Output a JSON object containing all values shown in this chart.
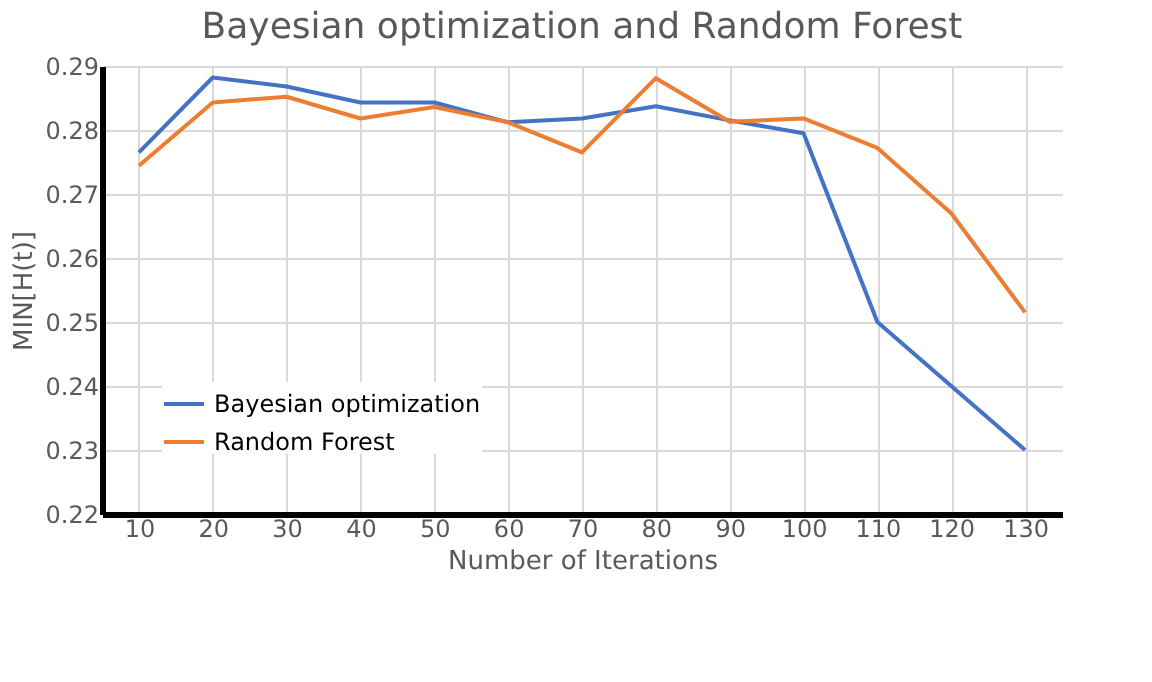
{
  "chart_data": {
    "type": "line",
    "title": "Bayesian optimization and Random Forest",
    "xlabel": "Number of Iterations",
    "ylabel": "MIN[H(t)]",
    "categories": [
      "10",
      "20",
      "30",
      "40",
      "50",
      "60",
      "70",
      "80",
      "90",
      "100",
      "110",
      "120",
      "130"
    ],
    "series": [
      {
        "name": "Bayesian optimization",
        "color": "#4472c4",
        "values": [
          0.2765,
          0.2882,
          0.2868,
          0.2843,
          0.2843,
          0.2812,
          0.2818,
          0.2837,
          0.2815,
          0.2795,
          0.25,
          0.24,
          0.23
        ]
      },
      {
        "name": "Random Forest",
        "color": "#ed7d31",
        "values": [
          0.2744,
          0.2843,
          0.2852,
          0.2818,
          0.2836,
          0.2812,
          0.2765,
          0.2881,
          0.2813,
          0.2818,
          0.2772,
          0.267,
          0.2515
        ]
      }
    ],
    "ylim": [
      0.22,
      0.29
    ],
    "yticks": [
      0.22,
      0.23,
      0.24,
      0.25,
      0.26,
      0.27,
      0.28,
      0.29
    ],
    "grid": true,
    "legend": "bottom left",
    "marker": "none",
    "line_style": "solid"
  }
}
